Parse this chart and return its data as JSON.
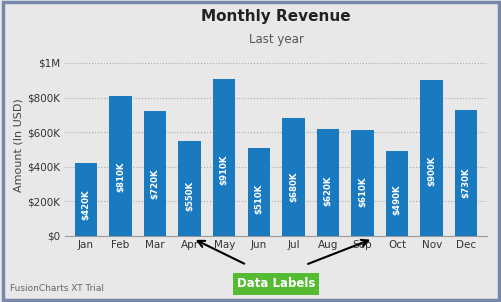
{
  "title": "Monthly Revenue",
  "subtitle": "Last year",
  "xlabel": "",
  "ylabel": "Amount (In USD)",
  "background_color": "#e8e8e8",
  "plot_bg_color": "#e8e8e8",
  "bar_color": "#1a7abf",
  "months": [
    "Jan",
    "Feb",
    "Mar",
    "Apr",
    "May",
    "Jun",
    "Jul",
    "Aug",
    "Sep",
    "Oct",
    "Nov",
    "Dec"
  ],
  "values": [
    420000,
    810000,
    720000,
    550000,
    910000,
    510000,
    680000,
    620000,
    610000,
    490000,
    900000,
    730000
  ],
  "labels": [
    "$420K",
    "$810K",
    "$720K",
    "$550K",
    "$910K",
    "$510K",
    "$680K",
    "$620K",
    "$610K",
    "$490K",
    "$900K",
    "$730K"
  ],
  "yticks": [
    0,
    200000,
    400000,
    600000,
    800000,
    1000000
  ],
  "ytick_labels": [
    "$0",
    "$200K",
    "$400K",
    "$600K",
    "$800K",
    "$1M"
  ],
  "ylim": [
    0,
    1050000
  ],
  "annotation_label": "Data Labels",
  "annotation_bg": "#55bb33",
  "annotation_text_color": "#ffffff",
  "watermark": "FusionCharts XT Trial",
  "border_color": "#7788aa"
}
